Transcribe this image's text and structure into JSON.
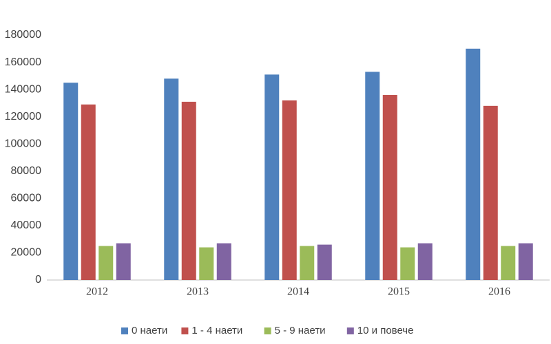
{
  "chart_data": {
    "type": "bar",
    "categories": [
      "2012",
      "2013",
      "2014",
      "2015",
      "2016"
    ],
    "series": [
      {
        "name": "0 наети",
        "color": "#4f81bd",
        "values": [
          145000,
          148000,
          151000,
          153000,
          170000
        ]
      },
      {
        "name": "1 - 4 наети",
        "color": "#c0504d",
        "values": [
          129000,
          131000,
          132000,
          136000,
          128000
        ]
      },
      {
        "name": "5 - 9 наети",
        "color": "#9bbb59",
        "values": [
          25000,
          24000,
          25000,
          24000,
          25000
        ]
      },
      {
        "name": "10 и повече",
        "color": "#8064a2",
        "values": [
          27000,
          27000,
          26000,
          27000,
          27000
        ]
      }
    ],
    "ylim": [
      0,
      180000
    ],
    "yticks": [
      0,
      20000,
      40000,
      60000,
      80000,
      100000,
      120000,
      140000,
      160000,
      180000
    ],
    "grid": false,
    "legend": "bottom"
  }
}
